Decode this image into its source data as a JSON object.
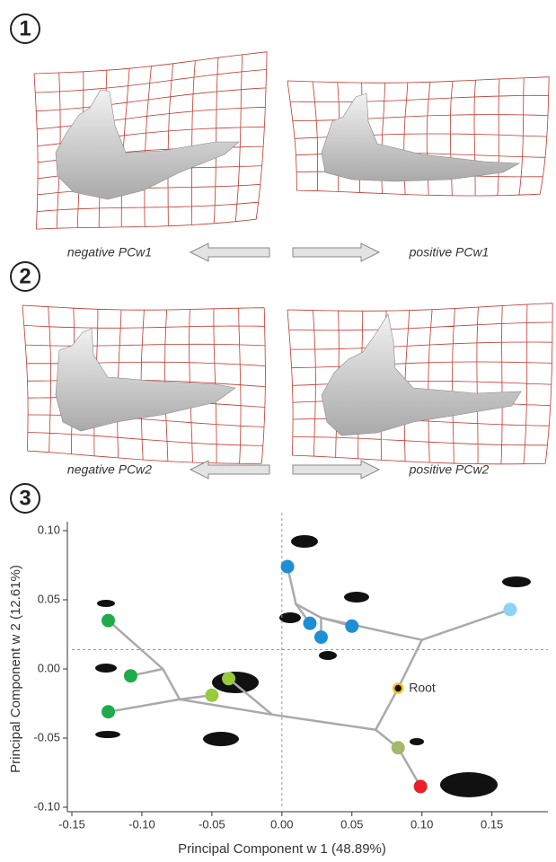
{
  "panels": [
    {
      "number": "1",
      "left_label": "negative PCw1",
      "right_label": "positive PCw1"
    },
    {
      "number": "2",
      "left_label": "negative PCw2",
      "right_label": "positive PCw2"
    },
    {
      "number": "3"
    }
  ],
  "chart_data": {
    "type": "scatter",
    "xlabel": "Principal Component w 1 (48.89%)",
    "ylabel": "Principal Component w 2 (12.61%)",
    "xlim": [
      -0.15,
      0.19
    ],
    "ylim": [
      -0.1,
      0.1
    ],
    "xticks": [
      -0.15,
      {
        "value": -0.1,
        "label": "-0.10"
      },
      -0.05,
      {
        "value": 0,
        "label": "0.00"
      },
      0.05,
      {
        "value": 0.1,
        "label": "0.10"
      },
      0.15
    ],
    "yticks": [
      {
        "value": 0.1,
        "label": "0.10"
      },
      0.05,
      {
        "value": 0,
        "label": "0.00"
      },
      -0.05,
      {
        "value": -0.1,
        "label": "-0.10"
      }
    ],
    "reference_lines": {
      "x": 0,
      "y": 0.014
    },
    "branch_color": "#aaaaaa",
    "branches": [
      {
        "x": [
          0.163,
          0.1
        ],
        "y": [
          0.043,
          0.021
        ]
      },
      {
        "x": [
          0.1,
          0.083
        ],
        "y": [
          0.021,
          -0.014
        ]
      },
      {
        "x": [
          0.083,
          0.067
        ],
        "y": [
          -0.014,
          -0.044
        ]
      },
      {
        "x": [
          0.1,
          0.028
        ],
        "y": [
          0.021,
          0.037
        ]
      },
      {
        "x": [
          0.028,
          0.05
        ],
        "y": [
          0.037,
          0.031
        ]
      },
      {
        "x": [
          0.028,
          0.01
        ],
        "y": [
          0.037,
          0.047
        ]
      },
      {
        "x": [
          0.01,
          0.004
        ],
        "y": [
          0.047,
          0.074
        ]
      },
      {
        "x": [
          0.01,
          0.02
        ],
        "y": [
          0.047,
          0.033
        ]
      },
      {
        "x": [
          0.028,
          0.028
        ],
        "y": [
          0.037,
          0.023
        ]
      },
      {
        "x": [
          0.067,
          0.083
        ],
        "y": [
          -0.044,
          -0.057
        ]
      },
      {
        "x": [
          0.083,
          0.099
        ],
        "y": [
          -0.057,
          -0.085
        ]
      },
      {
        "x": [
          0.067,
          -0.007
        ],
        "y": [
          -0.044,
          -0.033
        ]
      },
      {
        "x": [
          -0.007,
          -0.038
        ],
        "y": [
          -0.033,
          -0.007
        ]
      },
      {
        "x": [
          -0.007,
          -0.073
        ],
        "y": [
          -0.033,
          -0.022
        ]
      },
      {
        "x": [
          -0.073,
          -0.05
        ],
        "y": [
          -0.022,
          -0.019
        ]
      },
      {
        "x": [
          -0.073,
          -0.085
        ],
        "y": [
          -0.022,
          0.0
        ]
      },
      {
        "x": [
          -0.085,
          -0.124
        ],
        "y": [
          0.0,
          0.035
        ]
      },
      {
        "x": [
          -0.085,
          -0.108
        ],
        "y": [
          0.0,
          -0.005
        ]
      },
      {
        "x": [
          -0.073,
          -0.124
        ],
        "y": [
          -0.022,
          -0.031
        ]
      }
    ],
    "series": [
      {
        "color": "#1e8fd5",
        "x": [
          0.004,
          0.02,
          0.028,
          0.05
        ],
        "values": [
          0.074,
          0.033,
          0.023,
          0.031
        ]
      },
      {
        "color": "#8dd3f5",
        "x": [
          0.163
        ],
        "values": [
          0.043
        ]
      },
      {
        "color": "#1fab4a",
        "x": [
          -0.124,
          -0.108,
          -0.124
        ],
        "values": [
          0.035,
          -0.005,
          -0.031
        ]
      },
      {
        "color": "#99c93c",
        "x": [
          -0.038,
          -0.05
        ],
        "values": [
          -0.007,
          -0.019
        ]
      },
      {
        "color": "#a3b86c",
        "x": [
          0.083
        ],
        "values": [
          -0.057
        ]
      },
      {
        "color": "#e8202a",
        "x": [
          0.099
        ],
        "values": [
          -0.085
        ]
      },
      {
        "color": "#111111",
        "stroke": "#f5c518",
        "x": [
          0.083
        ],
        "values": [
          -0.014
        ],
        "annotation": "Root"
      }
    ]
  }
}
